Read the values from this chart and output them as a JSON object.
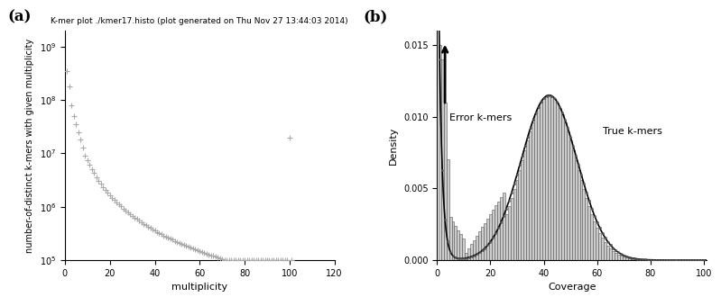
{
  "panel_a": {
    "title": "K-mer plot ./kmer17.histo (plot generated on Thu Nov 27 13:44:03 2014)",
    "xlabel": "multiplicity",
    "ylabel": "number-of-distinct k-mers with given multiplicity",
    "xlim": [
      0,
      120
    ],
    "ylim_log": [
      100000,
      2000000000
    ],
    "marker": "+",
    "marker_color": "#aaaaaa",
    "marker_size": 4,
    "label_a": "(a)"
  },
  "panel_b": {
    "xlabel": "Coverage",
    "ylabel": "Density",
    "xlim": [
      0,
      101
    ],
    "bar_color": "#cccccc",
    "bar_edge_color": "#555555",
    "bar_edge_width": 0.4,
    "curve_color": "#000000",
    "dot_color": "#555555",
    "label_b": "(b)",
    "error_kmers_label": "Error k-mers",
    "true_kmers_label": "True k-mers"
  }
}
